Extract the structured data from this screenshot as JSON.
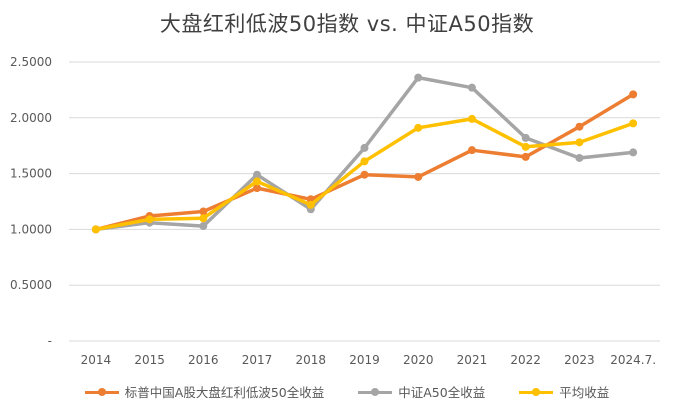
{
  "chart_data": {
    "type": "line",
    "title": "大盘红利低波50指数 vs.  中证A50指数",
    "categories": [
      "2014",
      "2015",
      "2016",
      "2017",
      "2018",
      "2019",
      "2020",
      "2021",
      "2022",
      "2023",
      "2024.7."
    ],
    "ylim": [
      0,
      2.5
    ],
    "yticks": [
      "-",
      "0.5000",
      "1.0000",
      "1.5000",
      "2.0000",
      "2.5000"
    ],
    "grid": true,
    "legend_position": "bottom",
    "series": [
      {
        "name": "标普中国A股大盘红利低波50全收益",
        "color": "#ED7D31",
        "values": [
          1.0,
          1.12,
          1.16,
          1.37,
          1.27,
          1.49,
          1.47,
          1.71,
          1.65,
          1.92,
          2.21
        ]
      },
      {
        "name": "中证A50全收益",
        "color": "#A5A5A5",
        "values": [
          1.0,
          1.06,
          1.03,
          1.49,
          1.18,
          1.73,
          2.36,
          2.27,
          1.82,
          1.64,
          1.69
        ]
      },
      {
        "name": "平均收益",
        "color": "#FFC000",
        "values": [
          1.0,
          1.09,
          1.1,
          1.43,
          1.22,
          1.61,
          1.91,
          1.99,
          1.74,
          1.78,
          1.95
        ]
      }
    ]
  }
}
